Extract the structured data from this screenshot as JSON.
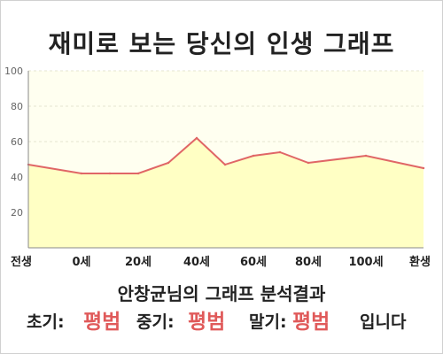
{
  "title": "재미로 보는 당신의 인생 그래프",
  "chart_data": {
    "type": "area",
    "x_categories": [
      "전생",
      "0세",
      "20세",
      "40세",
      "60세",
      "80세",
      "100세",
      "환생"
    ],
    "points": [
      {
        "x": "전생",
        "y": 47
      },
      {
        "x": "0세",
        "y": 42
      },
      {
        "x": "10세",
        "y": 42
      },
      {
        "x": "20세",
        "y": 42
      },
      {
        "x": "30세",
        "y": 48
      },
      {
        "x": "40세",
        "y": 62
      },
      {
        "x": "50세",
        "y": 47
      },
      {
        "x": "60세",
        "y": 52
      },
      {
        "x": "70세",
        "y": 54
      },
      {
        "x": "80세",
        "y": 48
      },
      {
        "x": "100세",
        "y": 52
      },
      {
        "x": "환생",
        "y": 45
      }
    ],
    "ylim": [
      0,
      100
    ],
    "y_ticks": [
      20,
      40,
      60,
      80,
      100
    ],
    "grid": true,
    "legend": "none",
    "line_color": "#e06666",
    "fill_color": "#ffffc4",
    "plot_bg": "#fffff0"
  },
  "result": {
    "title": "안창균님의 그래프 분석결과",
    "early_label": "초기:",
    "early_value": "평범",
    "middle_label": "중기:",
    "middle_value": "평범",
    "late_label": "말기:",
    "late_value": "평범",
    "suffix": "입니다"
  }
}
